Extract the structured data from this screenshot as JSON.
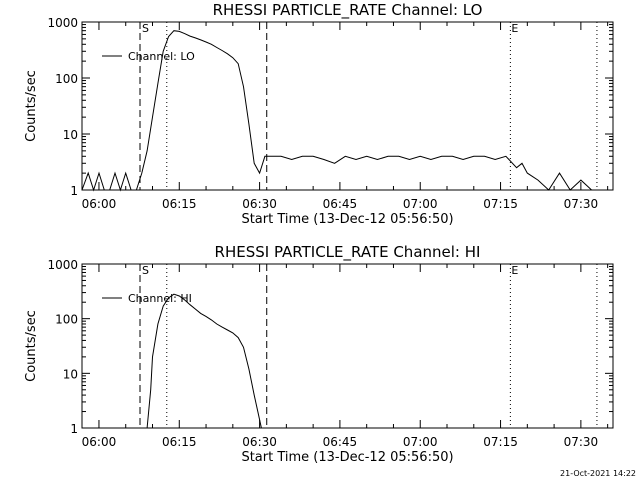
{
  "chart_data": [
    {
      "type": "line",
      "title": "RHESSI PARTICLE_RATE Channel: LO",
      "xlabel": "Start Time (13-Dec-12 05:56:50)",
      "ylabel": "Counts/sec",
      "yscale": "log",
      "ylim": [
        1,
        1000
      ],
      "xlim": [
        "05:56:50",
        "07:36:00"
      ],
      "x_ticks": [
        "06:00",
        "06:15",
        "06:30",
        "06:45",
        "07:00",
        "07:15",
        "07:30"
      ],
      "y_ticks": [
        "1",
        "10",
        "100",
        "1000"
      ],
      "grid": false,
      "legend": "top-left",
      "series": [
        {
          "name": "Channel: LO",
          "x": [
            "05:56:50",
            "05:58:00",
            "05:59:00",
            "06:00:00",
            "06:01:00",
            "06:02:00",
            "06:03:00",
            "06:04:00",
            "06:05:00",
            "06:06:00",
            "06:07:00",
            "06:08:00",
            "06:09:00",
            "06:10:00",
            "06:11:00",
            "06:12:00",
            "06:13:00",
            "06:14:00",
            "06:15:00",
            "06:16:00",
            "06:17:00",
            "06:18:00",
            "06:19:00",
            "06:20:00",
            "06:21:00",
            "06:22:00",
            "06:23:00",
            "06:24:00",
            "06:25:00",
            "06:26:00",
            "06:27:00",
            "06:28:00",
            "06:29:00",
            "06:30:00",
            "06:31:00",
            "06:32:00",
            "06:34:00",
            "06:36:00",
            "06:38:00",
            "06:40:00",
            "06:42:00",
            "06:44:00",
            "06:46:00",
            "06:48:00",
            "06:50:00",
            "06:52:00",
            "06:54:00",
            "06:56:00",
            "06:58:00",
            "07:00:00",
            "07:02:00",
            "07:04:00",
            "07:06:00",
            "07:08:00",
            "07:10:00",
            "07:12:00",
            "07:14:00",
            "07:16:00",
            "07:18:00",
            "07:19:00",
            "07:20:00",
            "07:22:00",
            "07:24:00",
            "07:26:00",
            "07:28:00",
            "07:30:00",
            "07:32:00",
            "07:34:00",
            "07:36:00"
          ],
          "values": [
            1,
            2,
            1,
            2,
            1,
            1,
            2,
            1,
            2,
            1,
            1,
            2,
            5,
            20,
            80,
            300,
            550,
            700,
            680,
            620,
            560,
            520,
            480,
            440,
            400,
            350,
            310,
            270,
            230,
            180,
            70,
            15,
            3,
            2,
            4,
            4,
            4,
            3.5,
            4,
            4,
            3.5,
            3,
            4,
            3.5,
            4,
            3.5,
            4,
            4,
            3.5,
            4,
            3.5,
            4,
            4,
            3.5,
            4,
            4,
            3.5,
            4,
            2.5,
            3,
            2,
            1.5,
            1,
            2,
            1,
            1.5,
            1,
            1,
            1
          ]
        }
      ],
      "annotations": {
        "markers": [
          "S",
          "E"
        ],
        "dashed_lines": [
          "06:07:40",
          "06:31:20"
        ],
        "dotted_lines": [
          "06:12:40",
          "07:16:50",
          "07:33:00"
        ]
      }
    },
    {
      "type": "line",
      "title": "RHESSI PARTICLE_RATE Channel: HI",
      "xlabel": "Start Time (13-Dec-12 05:56:50)",
      "ylabel": "Counts/sec",
      "yscale": "log",
      "ylim": [
        1,
        1000
      ],
      "xlim": [
        "05:56:50",
        "07:36:00"
      ],
      "x_ticks": [
        "06:00",
        "06:15",
        "06:30",
        "06:45",
        "07:00",
        "07:15",
        "07:30"
      ],
      "y_ticks": [
        "1",
        "10",
        "100",
        "1000"
      ],
      "grid": false,
      "legend": "top-left",
      "series": [
        {
          "name": "Channel: HI",
          "x": [
            "06:09:00",
            "06:09:40",
            "06:10:00",
            "06:11:00",
            "06:12:00",
            "06:13:00",
            "06:14:00",
            "06:15:00",
            "06:16:00",
            "06:17:00",
            "06:18:00",
            "06:19:00",
            "06:20:00",
            "06:21:00",
            "06:22:00",
            "06:23:00",
            "06:24:00",
            "06:25:00",
            "06:26:00",
            "06:27:00",
            "06:28:00",
            "06:29:00",
            "06:29:40",
            "06:30:20"
          ],
          "values": [
            1,
            5,
            20,
            80,
            170,
            240,
            280,
            260,
            220,
            180,
            150,
            125,
            110,
            95,
            80,
            70,
            62,
            55,
            45,
            30,
            12,
            4,
            2,
            1
          ]
        }
      ],
      "annotations": {
        "markers": [
          "S",
          "E"
        ],
        "dashed_lines": [
          "06:07:40",
          "06:31:20"
        ],
        "dotted_lines": [
          "06:12:40",
          "07:16:50",
          "07:33:00"
        ]
      }
    }
  ],
  "footer": {
    "timestamp": "21-Oct-2021 14:22"
  }
}
